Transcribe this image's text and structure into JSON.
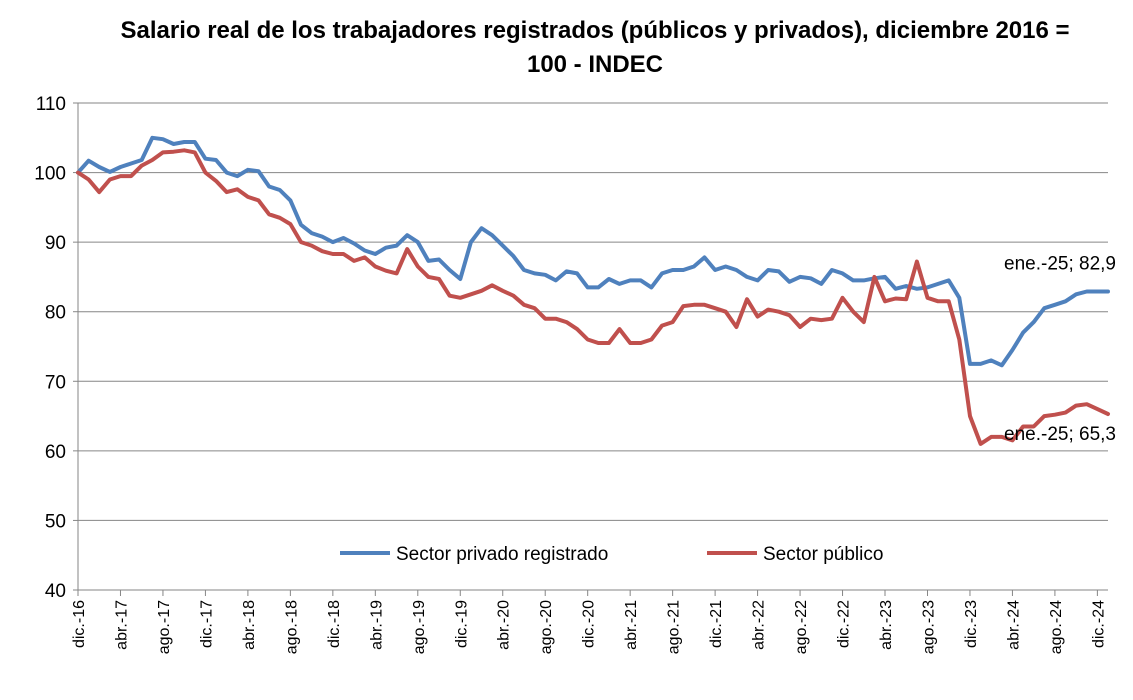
{
  "chart_data": {
    "type": "line",
    "title_line1": "Salario real de los trabajadores registrados (públicos y privados), diciembre 2016 =",
    "title_line2": "100 - INDEC",
    "ylim": [
      40,
      110
    ],
    "yticks": [
      40,
      50,
      60,
      70,
      80,
      90,
      100,
      110
    ],
    "grid": true,
    "legend_position": "bottom-center",
    "x": [
      "dic.-16",
      "ene.-17",
      "feb.-17",
      "mar.-17",
      "abr.-17",
      "may.-17",
      "jun.-17",
      "jul.-17",
      "ago.-17",
      "sep.-17",
      "oct.-17",
      "nov.-17",
      "dic.-17",
      "ene.-18",
      "feb.-18",
      "mar.-18",
      "abr.-18",
      "may.-18",
      "jun.-18",
      "jul.-18",
      "ago.-18",
      "sep.-18",
      "oct.-18",
      "nov.-18",
      "dic.-18",
      "ene.-19",
      "feb.-19",
      "mar.-19",
      "abr.-19",
      "may.-19",
      "jun.-19",
      "jul.-19",
      "ago.-19",
      "sep.-19",
      "oct.-19",
      "nov.-19",
      "dic.-19",
      "ene.-20",
      "feb.-20",
      "mar.-20",
      "abr.-20",
      "may.-20",
      "jun.-20",
      "jul.-20",
      "ago.-20",
      "sep.-20",
      "oct.-20",
      "nov.-20",
      "dic.-20",
      "ene.-21",
      "feb.-21",
      "mar.-21",
      "abr.-21",
      "may.-21",
      "jun.-21",
      "jul.-21",
      "ago.-21",
      "sep.-21",
      "oct.-21",
      "nov.-21",
      "dic.-21",
      "ene.-22",
      "feb.-22",
      "mar.-22",
      "abr.-22",
      "may.-22",
      "jun.-22",
      "jul.-22",
      "ago.-22",
      "sep.-22",
      "oct.-22",
      "nov.-22",
      "dic.-22",
      "ene.-23",
      "feb.-23",
      "mar.-23",
      "abr.-23",
      "may.-23",
      "jun.-23",
      "jul.-23",
      "ago.-23",
      "sep.-23",
      "oct.-23",
      "nov.-23",
      "dic.-23",
      "ene.-24",
      "feb.-24",
      "mar.-24",
      "abr.-24",
      "may.-24",
      "jun.-24",
      "jul.-24",
      "ago.-24",
      "sep.-24",
      "oct.-24",
      "nov.-24",
      "dic.-24",
      "ene.-25"
    ],
    "xtick_labels": [
      "dic.-16",
      "abr.-17",
      "ago.-17",
      "dic.-17",
      "abr.-18",
      "ago.-18",
      "dic.-18",
      "abr.-19",
      "ago.-19",
      "dic.-19",
      "abr.-20",
      "ago.-20",
      "dic.-20",
      "abr.-21",
      "ago.-21",
      "dic.-21",
      "abr.-22",
      "ago.-22",
      "dic.-22",
      "abr.-23",
      "ago.-23",
      "dic.-23",
      "abr.-24",
      "ago.-24",
      "dic.-24"
    ],
    "series": [
      {
        "name": "Sector privado registrado",
        "color": "#4f81bd",
        "values": [
          100,
          101.7,
          100.8,
          100.1,
          100.8,
          101.3,
          101.8,
          105,
          104.8,
          104.1,
          104.4,
          104.4,
          102,
          101.8,
          100,
          99.5,
          100.4,
          100.2,
          98,
          97.5,
          96,
          92.5,
          91.3,
          90.8,
          90,
          90.6,
          89.8,
          88.8,
          88.3,
          89.2,
          89.5,
          91,
          90,
          87.3,
          87.5,
          86,
          84.7,
          90,
          92,
          91,
          89.5,
          88,
          86,
          85.5,
          85.3,
          84.5,
          85.8,
          85.5,
          83.5,
          83.5,
          84.7,
          84,
          84.5,
          84.5,
          83.5,
          85.5,
          86,
          86,
          86.5,
          87.8,
          86,
          86.5,
          86,
          85,
          84.5,
          86,
          85.8,
          84.3,
          85,
          84.8,
          84,
          86,
          85.5,
          84.5,
          84.5,
          84.8,
          85,
          83.3,
          83.7,
          83.3,
          83.5,
          84,
          84.5,
          82,
          72.5,
          72.5,
          73,
          72.3,
          74.5,
          77,
          78.5,
          80.5,
          81,
          81.5,
          82.5,
          82.9,
          82.9,
          82.9
        ]
      },
      {
        "name": "Sector público",
        "color": "#c0504d",
        "values": [
          100,
          99,
          97.2,
          99,
          99.5,
          99.5,
          101,
          101.8,
          102.9,
          103,
          103.2,
          102.9,
          100,
          98.8,
          97.2,
          97.6,
          96.5,
          96,
          94,
          93.5,
          92.6,
          90,
          89.5,
          88.7,
          88.3,
          88.3,
          87.3,
          87.8,
          86.5,
          85.9,
          85.5,
          89,
          86.5,
          85,
          84.7,
          82.3,
          82,
          82.5,
          83,
          83.8,
          83,
          82.3,
          81,
          80.5,
          79,
          79,
          78.5,
          77.5,
          76,
          75.5,
          75.5,
          77.5,
          75.5,
          75.5,
          76,
          78,
          78.5,
          80.8,
          81,
          81,
          80.5,
          80,
          77.8,
          81.8,
          79.3,
          80.3,
          80,
          79.5,
          77.8,
          79,
          78.8,
          79,
          82,
          80,
          78.5,
          85,
          81.5,
          81.9,
          81.8,
          87.2,
          82,
          81.5,
          81.5,
          76,
          65,
          61,
          62,
          62,
          61.5,
          63.5,
          63.5,
          65,
          65.2,
          65.5,
          66.5,
          66.7,
          66,
          65.3
        ]
      }
    ],
    "annotations": [
      {
        "text": "ene.-25; 82,9",
        "series": 0,
        "index": 97
      },
      {
        "text": "ene.-25; 65,3",
        "series": 1,
        "index": 97
      }
    ]
  }
}
